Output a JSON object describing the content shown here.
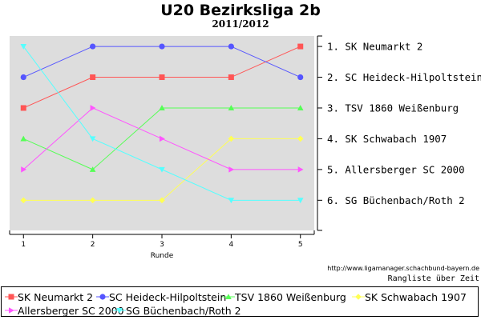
{
  "title": "U20 Bezirksliga 2b",
  "subtitle": "2011/2012",
  "source_url": "http://www.ligamanager.schachbund-bayern.de",
  "subnote": "Rangliste über Zeit",
  "chart_data": {
    "type": "line",
    "title": "U20 Bezirksliga 2b",
    "subtitle": "2011/2012",
    "xlabel": "Runde",
    "ylabel": "",
    "x": [
      1,
      2,
      3,
      4,
      5
    ],
    "ylim": [
      1,
      6
    ],
    "y_inverted": true,
    "right_tick_labels": [
      "1. SK Neumarkt 2",
      "2. SC Heideck-Hilpoltstein",
      "3. TSV 1860 Weißenburg",
      "4. SK Schwabach 1907",
      "5. Allersberger SC 2000",
      "6. SG Büchenbach/Roth 2"
    ],
    "grid": false,
    "legend_placement": "bottom",
    "series": [
      {
        "name": "SK Neumarkt 2",
        "values": [
          3,
          2,
          2,
          2,
          1
        ],
        "color": "#ff5555",
        "marker": "square"
      },
      {
        "name": "SC Heideck-Hilpoltstein",
        "values": [
          2,
          1,
          1,
          1,
          2
        ],
        "color": "#5555ff",
        "marker": "circle"
      },
      {
        "name": "TSV 1860 Weißenburg",
        "values": [
          4,
          5,
          3,
          3,
          3
        ],
        "color": "#55ff55",
        "marker": "triangle-up"
      },
      {
        "name": "SK Schwabach 1907",
        "values": [
          6,
          6,
          6,
          4,
          4
        ],
        "color": "#ffff55",
        "marker": "diamond"
      },
      {
        "name": "Allersberger SC 2000",
        "values": [
          5,
          3,
          4,
          5,
          5
        ],
        "color": "#ff55ff",
        "marker": "triangle-right"
      },
      {
        "name": "SG Büchenbach/Roth 2",
        "values": [
          1,
          4,
          5,
          6,
          6
        ],
        "color": "#55ffff",
        "marker": "triangle-down"
      }
    ]
  }
}
